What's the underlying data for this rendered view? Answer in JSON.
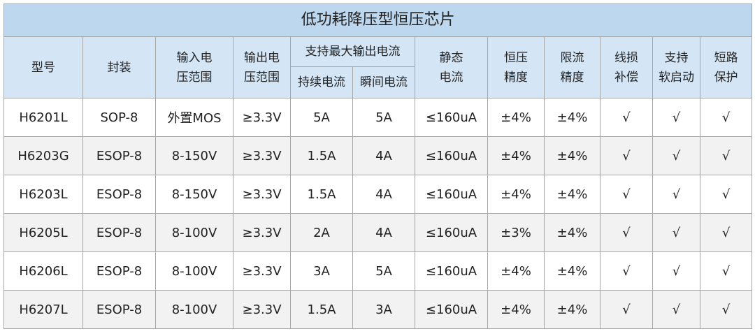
{
  "title": "低功耗降压型恒压芯片",
  "table": {
    "header": [
      "型号",
      "封装",
      "输入电\n压范围",
      "输出电\n压范围",
      {
        "group": "支持最大输出电流",
        "columns": [
          "持续电流",
          "瞬间电流"
        ]
      },
      "静态\n电流",
      "恒压\n精度",
      "限流\n精度",
      "线损\n补偿",
      "支持\n软启动",
      "短路\n保护"
    ],
    "rows": [
      [
        "H6201L",
        "SOP-8",
        "外置MOS",
        "≥3.3V",
        "5A",
        "5A",
        "≤160uA",
        "±4%",
        "±4%",
        "√",
        "√",
        "√"
      ],
      [
        "H6203G",
        "ESOP-8",
        "8-150V",
        "≥3.3V",
        "1.5A",
        "4A",
        "≤160uA",
        "±4%",
        "±4%",
        "√",
        "√",
        "√"
      ],
      [
        "H6203L",
        "ESOP-8",
        "8-150V",
        "≥3.3V",
        "1.5A",
        "4A",
        "≤160uA",
        "±4%",
        "±4%",
        "√",
        "√",
        "√"
      ],
      [
        "H6205L",
        "ESOP-8",
        "8-100V",
        "≥3.3V",
        "2A",
        "4A",
        "≤160uA",
        "±3%",
        "±4%",
        "√",
        "√",
        "√"
      ],
      [
        "H6206L",
        "ESOP-8",
        "8-100V",
        "≥3.3V",
        "3A",
        "5A",
        "≤160uA",
        "±4%",
        "±4%",
        "√",
        "√",
        "√"
      ],
      [
        "H6207L",
        "ESOP-8",
        "8-100V",
        "≥3.3V",
        "1.5A",
        "3A",
        "≤160uA",
        "±4%",
        "±4%",
        "√",
        "√",
        "√"
      ]
    ]
  }
}
